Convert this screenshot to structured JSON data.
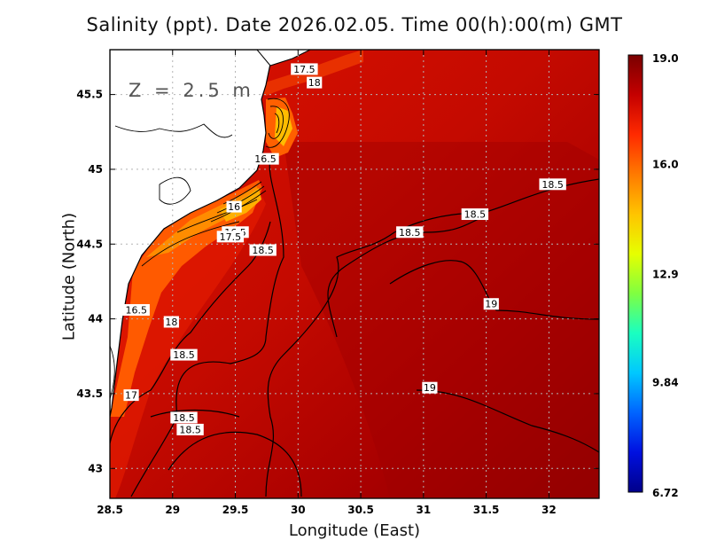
{
  "title": "Salinity (ppt). Date 2026.02.05. Time 00(h):00(m) GMT",
  "xlabel": "Longitude (East)",
  "ylabel": "Latitude (North)",
  "depth_label": "Z = 2.5 m",
  "x_ticks": [
    28.5,
    29,
    29.5,
    30,
    30.5,
    31,
    31.5,
    32
  ],
  "x_tick_labels": [
    "28.5",
    "29",
    "29.5",
    "30",
    "30.5",
    "31",
    "31.5",
    "32"
  ],
  "y_ticks": [
    43,
    43.5,
    44,
    44.5,
    45,
    45.5
  ],
  "y_tick_labels": [
    "43",
    "43.5",
    "44",
    "44.5",
    "45",
    "45.5"
  ],
  "colorbar": {
    "min": 6.72,
    "max": 19.0,
    "tick_labels": [
      "19.0",
      "16.0",
      "12.9",
      "9.84",
      "6.72"
    ],
    "colors": [
      "#7a0000",
      "#c40000",
      "#ff2a00",
      "#ff7a00",
      "#ffc400",
      "#e6ff00",
      "#80ff40",
      "#1affc0",
      "#00c8ff",
      "#0064ff",
      "#0010e0",
      "#00008a"
    ]
  },
  "chart_data": {
    "type": "heatmap",
    "variable": "Salinity",
    "unit": "ppt",
    "date": "2026.02.05",
    "time": "00(h):00(m) GMT",
    "depth": "2.5 m",
    "xlim": [
      28.5,
      32.4
    ],
    "ylim": [
      42.8,
      45.8
    ],
    "contour_labels": [
      {
        "text": "17.5",
        "lon": 30.05,
        "lat": 45.67
      },
      {
        "text": "18",
        "lon": 30.13,
        "lat": 45.58
      },
      {
        "text": "16.5",
        "lon": 29.74,
        "lat": 45.07
      },
      {
        "text": "16",
        "lon": 29.49,
        "lat": 44.75
      },
      {
        "text": "16.5",
        "lon": 29.5,
        "lat": 44.58
      },
      {
        "text": "17.5",
        "lon": 29.46,
        "lat": 44.55
      },
      {
        "text": "18.5",
        "lon": 29.72,
        "lat": 44.46
      },
      {
        "text": "16.5",
        "lon": 28.71,
        "lat": 44.06
      },
      {
        "text": "18",
        "lon": 28.99,
        "lat": 43.98
      },
      {
        "text": "18.5",
        "lon": 29.09,
        "lat": 43.76
      },
      {
        "text": "17",
        "lon": 28.67,
        "lat": 43.49
      },
      {
        "text": "18.5",
        "lon": 29.09,
        "lat": 43.34
      },
      {
        "text": "18.5",
        "lon": 29.14,
        "lat": 43.26
      },
      {
        "text": "18.5",
        "lon": 30.89,
        "lat": 44.58
      },
      {
        "text": "18.5",
        "lon": 31.41,
        "lat": 44.7
      },
      {
        "text": "18.5",
        "lon": 32.03,
        "lat": 44.9
      },
      {
        "text": "19",
        "lon": 31.54,
        "lat": 44.1
      },
      {
        "text": "19",
        "lon": 31.05,
        "lat": 43.54
      }
    ]
  }
}
